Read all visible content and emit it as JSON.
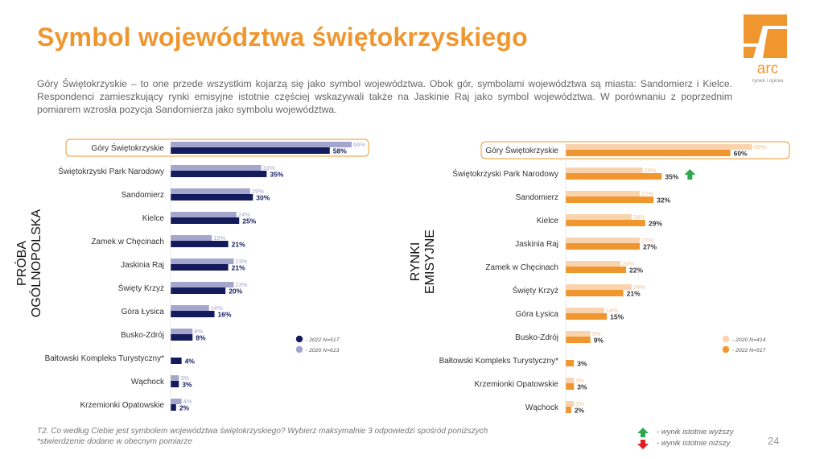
{
  "title": "Symbol województwa świętokrzyskiego",
  "logo": {
    "text": "arc",
    "subtitle": "rynek i opinia"
  },
  "intro": "Góry Świętokrzyskie – to one przede wszystkim kojarzą się jako symbol województwa. Obok gór, symbolami województwa są miasta: Sandomierz i Kielce. Respondenci zamieszkujący rynki emisyjne istotnie częściej wskazywali także na Jaskinie Raj jako symbol województwa. W porównaniu z poprzednim pomiarem wzrosła pozycja Sandomierza jako symbolu województwa.",
  "colors": {
    "accent": "#F0962E",
    "navy": "#141B5C",
    "lavender": "#A3A5CC",
    "orange": "#F0962E",
    "peach": "#F9D3AE",
    "up": "#2EA84F",
    "down": "#E02020"
  },
  "chart_data": [
    {
      "type": "bar",
      "orientation": "horizontal",
      "group_label": [
        "PRÓBA",
        "OGÓLNOPOLSKA"
      ],
      "categories": [
        "Góry Świętokrzyskie",
        "Świętokrzyski Park Narodowy",
        "Sandomierz",
        "Kielce",
        "Zamek w Chęcinach",
        "Jaskinia Raj",
        "Święty Krzyż",
        "Góra Łysica",
        "Busko-Zdrój",
        "Bałtowski Kompleks Turystyczny*",
        "Wąchock",
        "Krzemionki Opatowskie"
      ],
      "series": [
        {
          "name": "- 2022 N=517",
          "values": [
            58,
            35,
            30,
            25,
            21,
            21,
            20,
            16,
            8,
            4,
            3,
            2
          ]
        },
        {
          "name": "- 2020 N=613",
          "values": [
            66,
            33,
            29,
            24,
            15,
            23,
            23,
            14,
            8,
            null,
            3,
            4
          ]
        }
      ],
      "labels_2022": [
        "58%",
        "35%",
        "30%",
        "25%",
        "21%",
        "21%",
        "20%",
        "16%",
        "8%",
        "4%",
        "3%",
        "2%"
      ],
      "labels_2020": [
        "66%",
        "33%",
        "29%",
        "24%",
        "15%",
        "23%",
        "23%",
        "14%",
        "8%",
        "",
        "3%",
        "4%"
      ],
      "highlight_category": "Góry Świętokrzyskie",
      "legend_position": "bottom-right"
    },
    {
      "type": "bar",
      "orientation": "horizontal",
      "group_label": [
        "RYNKI",
        "EMISYJNE"
      ],
      "categories": [
        "Góry Świętokrzyskie",
        "Świętokrzyski Park Narodowy",
        "Sandomierz",
        "Kielce",
        "Jaskinia Raj",
        "Zamek w Chęcinach",
        "Święty Krzyż",
        "Góra Łysica",
        "Busko-Zdrój",
        "Bałtowski Kompleks Turystyczny*",
        "Krzemionki Opatowskie",
        "Wąchock"
      ],
      "series": [
        {
          "name": "- 2022 N=517",
          "values": [
            60,
            35,
            32,
            29,
            27,
            22,
            21,
            15,
            9,
            3,
            3,
            2
          ]
        },
        {
          "name": "- 2020 N=414",
          "values": [
            68,
            28,
            27,
            24,
            27,
            20,
            24,
            14,
            9,
            null,
            3,
            3
          ]
        }
      ],
      "labels_2022": [
        "60%",
        "35%",
        "32%",
        "29%",
        "27%",
        "22%",
        "21%",
        "15%",
        "9%",
        "3%",
        "3%",
        "2%"
      ],
      "labels_2020": [
        "68%",
        "28%",
        "27%",
        "24%",
        "27%",
        "20%",
        "24%",
        "14%",
        "9%",
        "",
        "3%",
        "3%"
      ],
      "significance": {
        "Świętokrzyski Park Narodowy": "up"
      },
      "highlight_category": "Góry Świętokrzyskie",
      "legend_position": "bottom-right"
    }
  ],
  "footnote_1": "T2. Co według Ciebie jest symbolem województwa świętokrzyskiego? Wybierz maksymalnie 3 odpowiedzi spośród poniższych",
  "footnote_2": "*stwierdzenie dodane w obecnym pomiarze",
  "sig_up_label": "- wynik istotnie wyższy",
  "sig_down_label": "- wynik istotnie niższy",
  "page_number": "24"
}
